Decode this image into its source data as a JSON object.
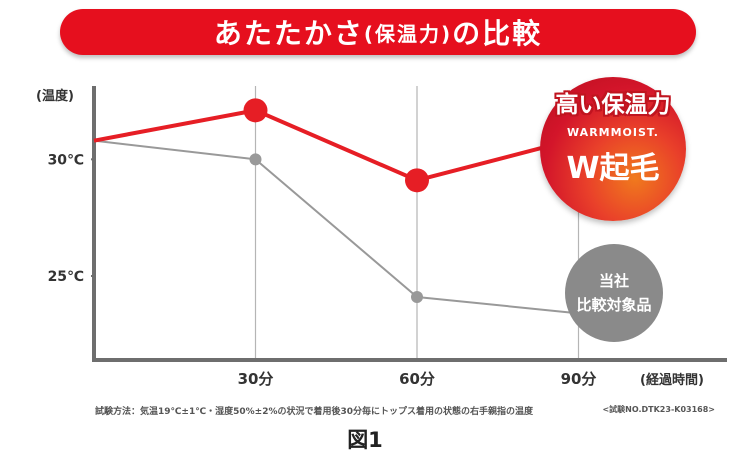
{
  "title": {
    "main_before": "あたたかさ",
    "paren": "(保温力)",
    "main_after": "の比較"
  },
  "chart_data": {
    "type": "line",
    "ylabel": "(温度)",
    "xlabel": "(経過時間)",
    "x": [
      0,
      30,
      60,
      90
    ],
    "x_ticks": [
      {
        "value": 30,
        "label": "30分"
      },
      {
        "value": 60,
        "label": "60分"
      },
      {
        "value": 90,
        "label": "90分"
      }
    ],
    "y_ticks": [
      {
        "value": 30,
        "label": "30℃"
      },
      {
        "value": 25,
        "label": "25℃"
      }
    ],
    "xlim": [
      0,
      120
    ],
    "ylim": [
      21.4,
      33.4
    ],
    "grid": "vertical lines at 30, 60, 90",
    "series": [
      {
        "key": "warmmoist",
        "color": "#e61e25",
        "values": [
          30.8,
          32.1,
          29.1,
          30.9
        ]
      },
      {
        "key": "comparison",
        "color": "#999999",
        "values": [
          30.8,
          30.0,
          24.1,
          23.4
        ]
      }
    ]
  },
  "legend_badges": {
    "product": {
      "title": "高い保温力",
      "brand": "WARMMOIST.",
      "name": "W起毛",
      "colors": [
        "#d3152a",
        "#f07a1d"
      ]
    },
    "comparison": {
      "line1": "当社",
      "line2": "比較対象品",
      "color": "#8a8a8a"
    }
  },
  "footnote": {
    "text": "試験方法：気温19℃±1℃・湿度50%±2%の状況で着用後30分毎にトップス着用の状態の右手親指の温度",
    "code": "<試験NO.DTK23-K03168>"
  },
  "caption": "図1"
}
